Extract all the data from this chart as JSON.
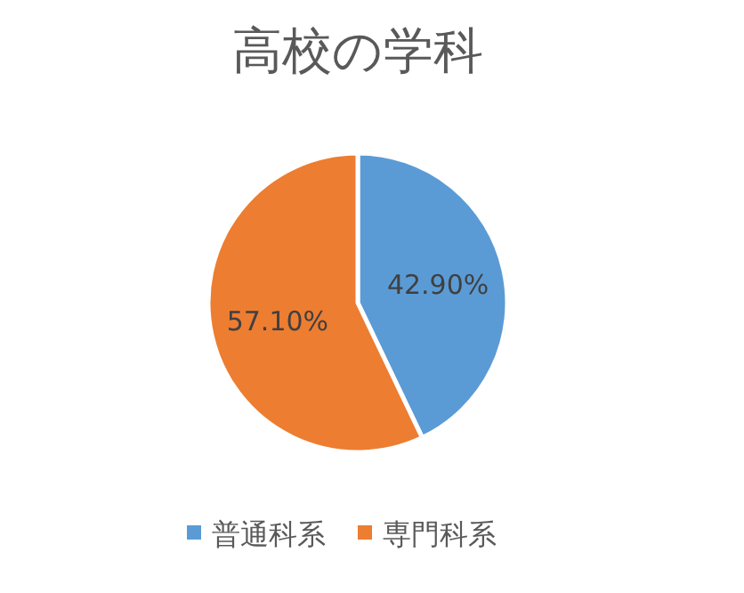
{
  "chart_data": {
    "type": "pie",
    "title": "高校の学科",
    "categories": [
      "普通科系",
      "専門科系"
    ],
    "values": [
      42.9,
      57.1
    ],
    "colors": [
      "#5b9bd5",
      "#ed7d31"
    ],
    "value_labels": [
      "42.90%",
      "57.10%"
    ],
    "legend": "bottom"
  }
}
